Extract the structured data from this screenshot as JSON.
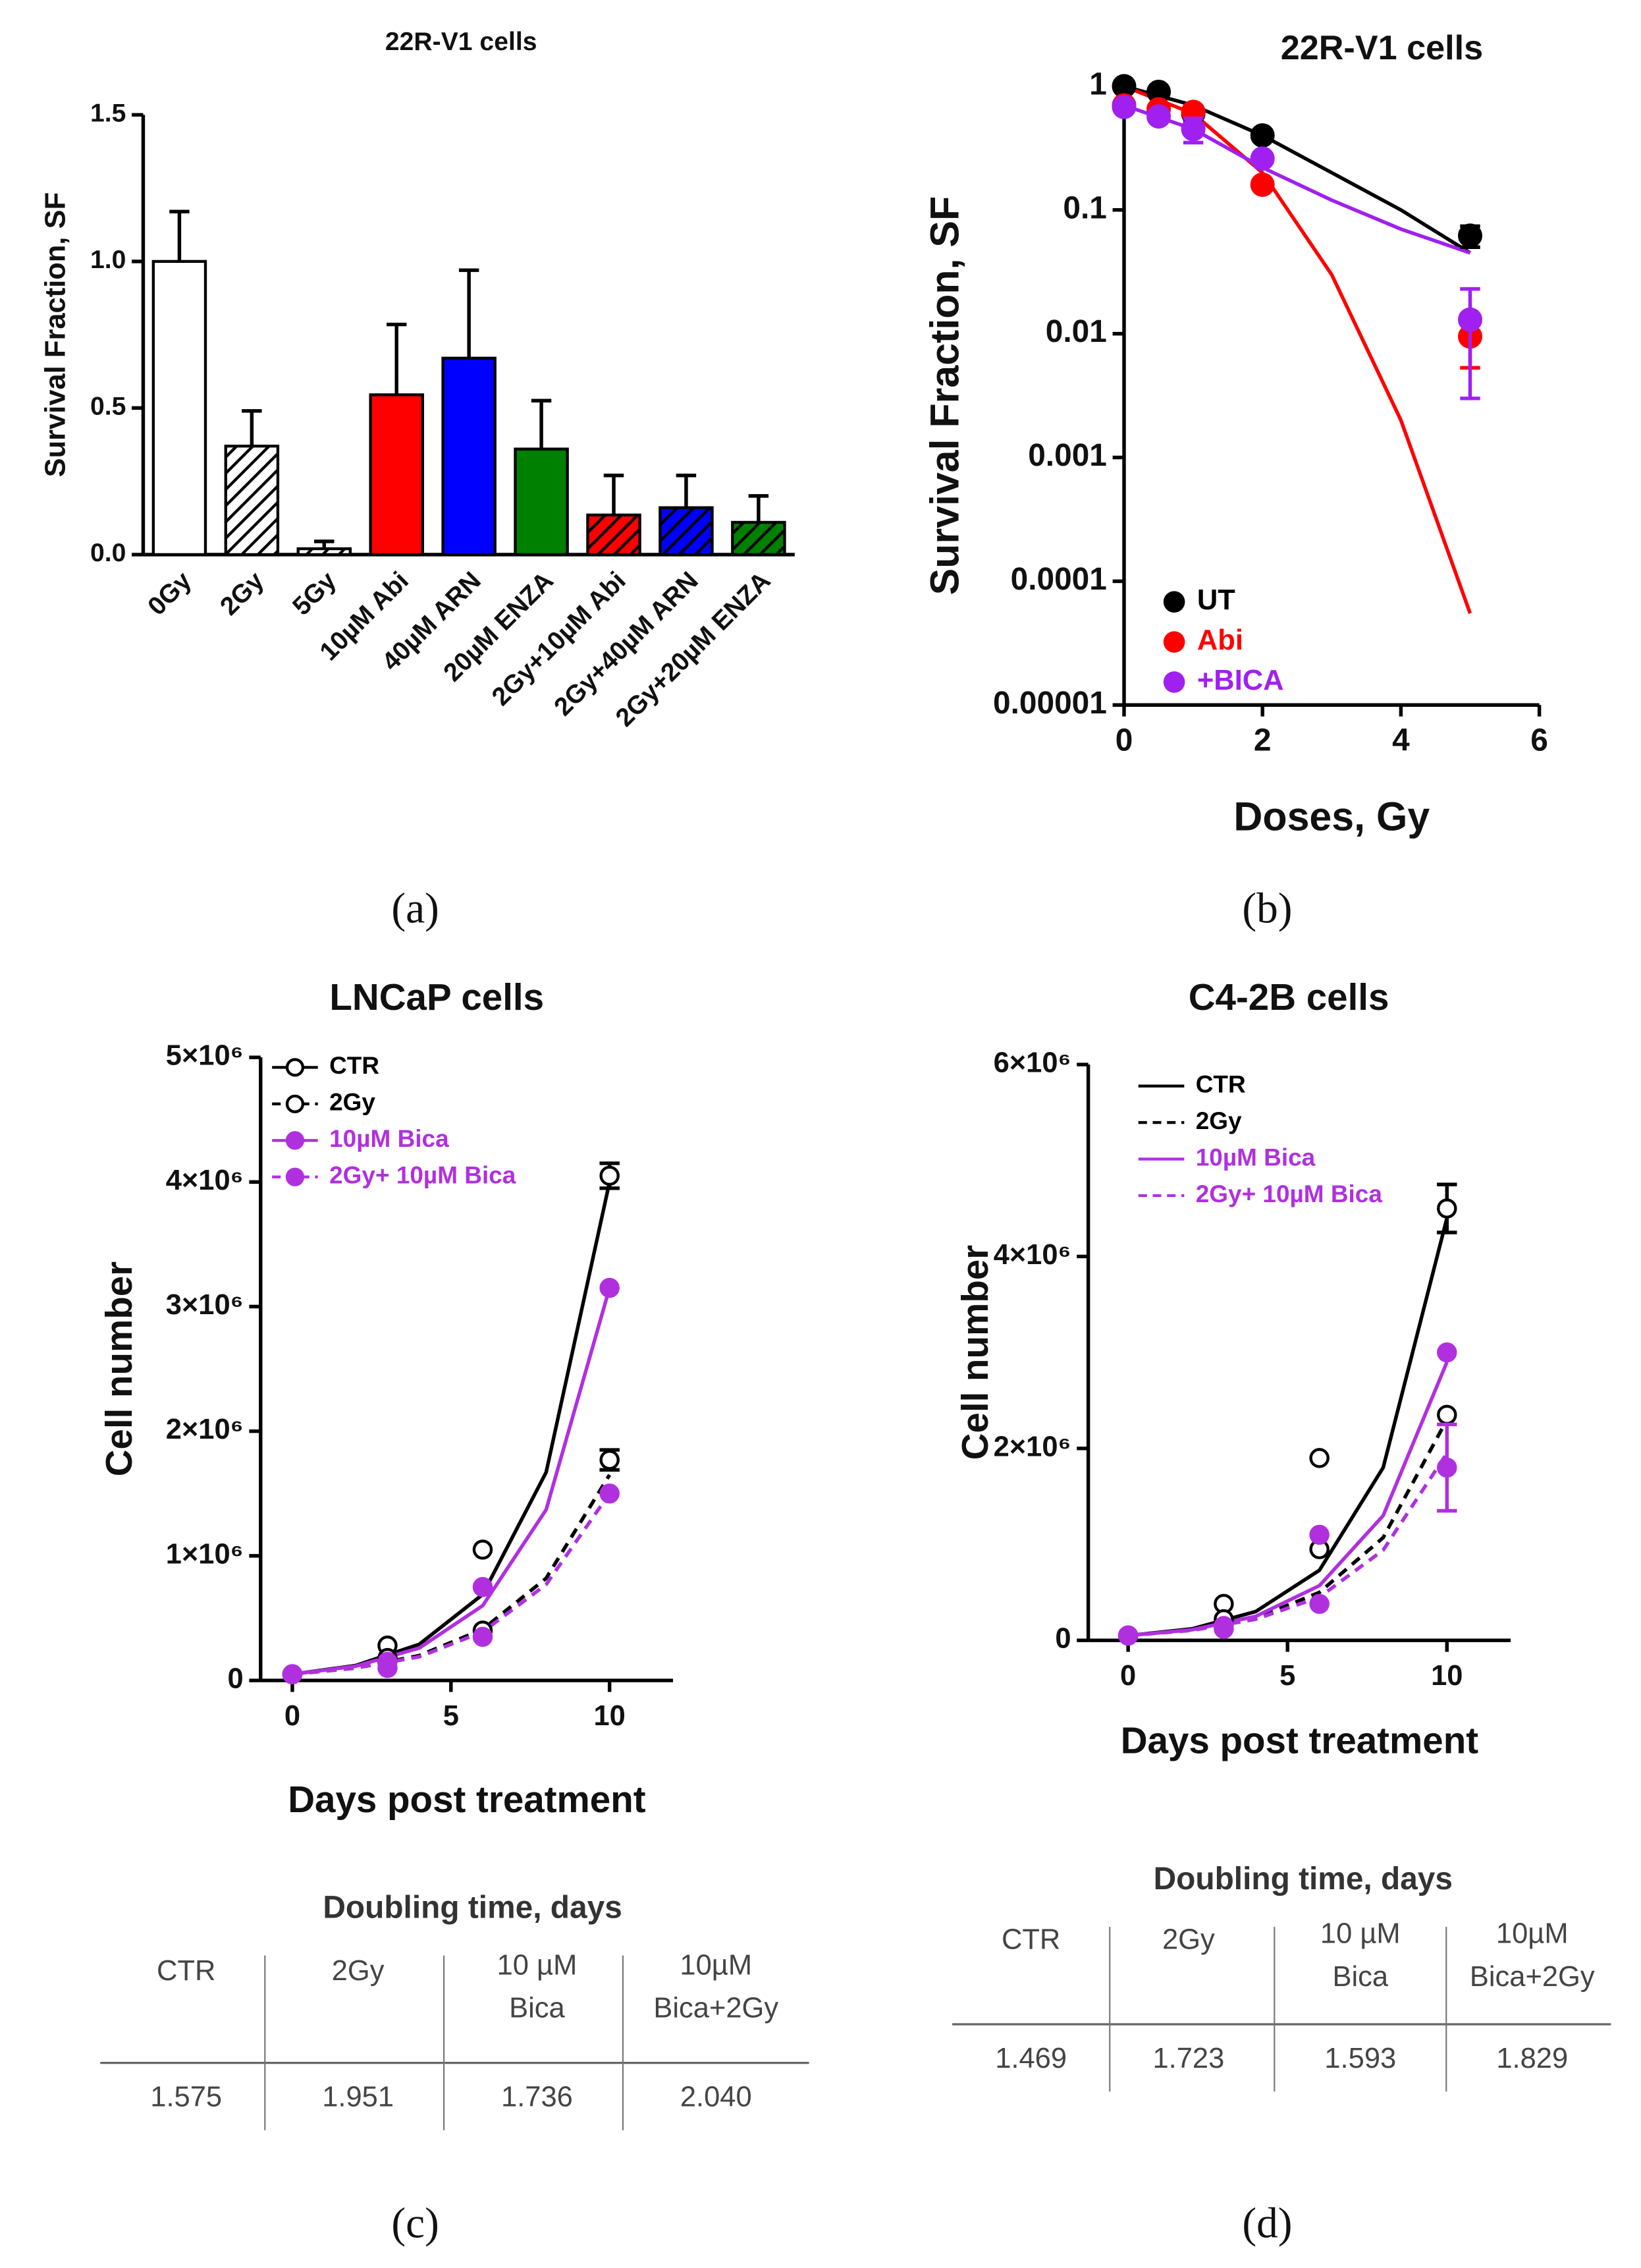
{
  "chart_data": [
    {
      "type": "bar",
      "title": "22R-V1 cells",
      "ylabel": "Survival Fraction, SF",
      "categories": [
        "0Gy",
        "2Gy",
        "5Gy",
        "10µM Abi",
        "40µM ARN",
        "20µM ENZA",
        "2Gy+10µM Abi",
        "2Gy+40µM ARN",
        "2Gy+20µM ENZA"
      ],
      "values": [
        1.0,
        0.37,
        0.02,
        0.545,
        0.67,
        0.36,
        0.135,
        0.16,
        0.11
      ],
      "errors": [
        0.17,
        0.12,
        0.025,
        0.24,
        0.3,
        0.165,
        0.135,
        0.11,
        0.09
      ],
      "colors": [
        "#ffffff",
        "#ffffff",
        "#ffffff",
        "#ff0000",
        "#0000ff",
        "#008000",
        "#ff0000",
        "#0000ff",
        "#008000"
      ],
      "hatch": [
        false,
        true,
        true,
        false,
        false,
        false,
        true,
        true,
        true
      ],
      "ylim": [
        0,
        1.5
      ],
      "yticks": [
        {
          "value": 0,
          "label": "0.0"
        },
        {
          "value": 0.5,
          "label": "0.5"
        },
        {
          "value": 1,
          "label": "1.0"
        },
        1.5
      ],
      "grid": false
    },
    {
      "type": "scatter",
      "title": "22R-V1 cells",
      "xlabel": "Doses, Gy",
      "ylabel": "Survival Fraction, SF",
      "log_y": true,
      "x": [
        0,
        0.5,
        1,
        2,
        5
      ],
      "fit_x": [
        0,
        1,
        2,
        3,
        4,
        5
      ],
      "series": [
        {
          "name": "UT",
          "color": "#000000",
          "values": [
            1,
            0.9,
            0.6,
            0.4,
            0.062
          ],
          "errors": [
            null,
            null,
            0.08,
            null,
            0.012
          ],
          "fit_values": [
            1,
            0.7,
            0.4,
            0.2,
            0.1,
            0.045
          ]
        },
        {
          "name": "Abi",
          "color": "#ff0000",
          "values": [
            0.7,
            0.65,
            0.62,
            0.16,
            0.0095
          ],
          "errors": [
            null,
            null,
            null,
            null,
            0.0042
          ],
          "fit_values": [
            1,
            0.6,
            0.2,
            0.03,
            0.002,
            5.5e-05
          ]
        },
        {
          "name": "+BICA",
          "color": "#a020f0",
          "values": [
            0.68,
            0.57,
            0.45,
            0.26,
            0.013
          ],
          "errors": [
            null,
            null,
            0.1,
            null,
            0.01
          ],
          "fit_values": [
            0.7,
            0.45,
            0.22,
            0.12,
            0.07,
            0.045
          ]
        }
      ],
      "xlim": [
        0,
        6
      ],
      "xticks": [
        0,
        2,
        4,
        6
      ],
      "ylim": [
        1e-05,
        1
      ],
      "yticks": [
        1,
        0.1,
        0.01,
        0.001,
        0.0001,
        1e-05
      ],
      "legend": "lower-left",
      "grid": false
    },
    {
      "type": "line",
      "title": "LNCaP cells",
      "xlabel": "Days post treatment",
      "ylabel": "Cell number",
      "x": [
        0,
        3,
        6,
        10
      ],
      "fit_x": [
        0,
        2,
        4,
        6,
        8,
        10
      ],
      "legend_markers": true,
      "series": [
        {
          "name": "CTR",
          "color": "#000000",
          "marker": "open",
          "dash": false,
          "values": [
            50000,
            280000,
            1050000,
            4050000
          ],
          "errors": [
            null,
            null,
            null,
            100000
          ],
          "fit_values": [
            50000,
            120000,
            290000,
            690000,
            1670000,
            4000000
          ]
        },
        {
          "name": "2Gy",
          "color": "#000000",
          "marker": "open",
          "dash": true,
          "values": [
            50000,
            180000,
            400000,
            1770000
          ],
          "errors": [
            null,
            null,
            null,
            80000
          ],
          "fit_values": [
            50000,
            100000,
            200000,
            410000,
            820000,
            1650000
          ]
        },
        {
          "name": "10µM Bica",
          "color": "#b030e0",
          "marker": "filled",
          "dash": false,
          "values": [
            50000,
            100000,
            750000,
            3150000
          ],
          "errors": [
            null,
            null,
            null,
            null
          ],
          "fit_values": [
            50000,
            115000,
            260000,
            600000,
            1370000,
            3150000
          ]
        },
        {
          "name": "2Gy+ 10µM Bica",
          "color": "#b030e0",
          "marker": "filled",
          "dash": true,
          "values": [
            50000,
            150000,
            350000,
            1500000
          ],
          "errors": [
            null,
            null,
            null,
            null
          ],
          "fit_values": [
            50000,
            100000,
            190000,
            390000,
            770000,
            1500000
          ]
        }
      ],
      "xlim": [
        -1,
        12
      ],
      "xticks": [
        0,
        5,
        10
      ],
      "ylim": [
        0,
        5000000
      ],
      "yticks": [
        0,
        {
          "value": 1000000,
          "label": "1×10⁶"
        },
        {
          "value": 2000000,
          "label": "2×10⁶"
        },
        {
          "value": 3000000,
          "label": "3×10⁶"
        },
        {
          "value": 4000000,
          "label": "4×10⁶"
        },
        {
          "value": 5000000,
          "label": "5×10⁶"
        }
      ],
      "legend": "upper-left",
      "grid": false
    },
    {
      "type": "line",
      "title": "C4-2B cells",
      "xlabel": "Days post treatment",
      "ylabel": "Cell number",
      "x": [
        0,
        3,
        6,
        10
      ],
      "fit_x": [
        0,
        2,
        4,
        6,
        8,
        10
      ],
      "legend_markers": false,
      "series": [
        {
          "name": "CTR",
          "color": "#000000",
          "marker": "open",
          "dash": false,
          "values": [
            50000,
            380000,
            1900000,
            4500000
          ],
          "errors": [
            null,
            null,
            null,
            250000
          ],
          "fit_values": [
            50000,
            120000,
            300000,
            730000,
            1800000,
            4400000
          ]
        },
        {
          "name": "2Gy",
          "color": "#000000",
          "marker": "open",
          "dash": true,
          "values": [
            50000,
            220000,
            950000,
            2350000
          ],
          "errors": [
            null,
            null,
            null,
            null
          ],
          "fit_values": [
            50000,
            108000,
            230000,
            500000,
            1070000,
            2300000
          ]
        },
        {
          "name": "10µM Bica",
          "color": "#b030e0",
          "marker": "filled",
          "dash": false,
          "values": [
            50000,
            150000,
            1100000,
            3000000
          ],
          "errors": [
            null,
            null,
            null,
            null
          ],
          "fit_values": [
            50000,
            110000,
            250000,
            570000,
            1300000,
            2900000
          ]
        },
        {
          "name": "2Gy+ 10µM Bica",
          "color": "#b030e0",
          "marker": "filled",
          "dash": true,
          "values": [
            50000,
            120000,
            380000,
            1800000
          ],
          "errors": [
            null,
            null,
            null,
            450000
          ],
          "fit_values": [
            50000,
            104000,
            220000,
            450000,
            940000,
            1950000
          ]
        }
      ],
      "xlim": [
        -1.25,
        12
      ],
      "xticks": [
        0,
        5,
        10
      ],
      "ylim": [
        0,
        6000000
      ],
      "yticks": [
        0,
        {
          "value": 2000000,
          "label": "2×10⁶"
        },
        {
          "value": 4000000,
          "label": "4×10⁶"
        },
        {
          "value": 6000000,
          "label": "6×10⁶"
        }
      ],
      "legend": "upper-left",
      "grid": false
    }
  ],
  "tables": [
    {
      "title": "Doubling time, days",
      "headers": [
        [
          "CTR"
        ],
        [
          "2Gy"
        ],
        [
          "10 µM",
          "Bica"
        ],
        [
          "10µM",
          "Bica+2Gy"
        ]
      ],
      "row": [
        "1.575",
        "1.951",
        "1.736",
        "2.040"
      ]
    },
    {
      "title": "Doubling time, days",
      "headers": [
        [
          "CTR"
        ],
        [
          "2Gy"
        ],
        [
          "10 µM",
          "Bica"
        ],
        [
          "10µM",
          "Bica+2Gy"
        ]
      ],
      "row": [
        "1.469",
        "1.723",
        "1.593",
        "1.829"
      ]
    }
  ],
  "panel_labels": [
    "(a)",
    "(b)",
    "(c)",
    "(d)"
  ]
}
